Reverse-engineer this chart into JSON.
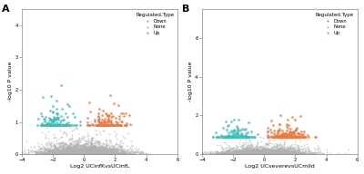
{
  "panel_A": {
    "xlabel": "Log2 UCinfKvsUCinfL",
    "ylabel": "-log10 P value",
    "label": "A",
    "xlim": [
      -4,
      6
    ],
    "ylim": [
      0,
      4.5
    ],
    "xticks": [
      -4,
      -2,
      0,
      2,
      4,
      6
    ],
    "yticks": [
      0,
      1,
      2,
      3,
      4
    ],
    "seed": 42,
    "n_none": 4000,
    "n_down": 180,
    "n_up": 160
  },
  "panel_B": {
    "xlabel": "Log2 UCseverevsUCmild",
    "ylabel": "-log10 P value",
    "label": "B",
    "xlim": [
      -4,
      6
    ],
    "ylim": [
      0,
      7.5
    ],
    "xticks": [
      -4,
      -2,
      0,
      2,
      4,
      6
    ],
    "yticks": [
      0,
      2,
      4,
      6
    ],
    "seed": 77,
    "n_none": 4000,
    "n_down": 190,
    "n_up": 250
  },
  "color_down": "#3dbfb8",
  "color_none": "#b0b0b0",
  "color_up": "#f07840",
  "legend_title": "Regulated.Type",
  "legend_labels": [
    "Down",
    "None",
    "Up"
  ],
  "point_size": 2,
  "alpha_none": 0.5,
  "alpha_colored": 0.85,
  "background_color": "#ffffff"
}
